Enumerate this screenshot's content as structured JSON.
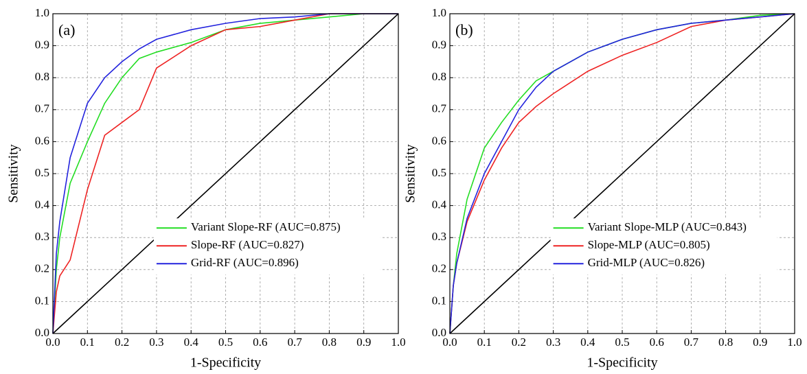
{
  "chart_data": [
    {
      "type": "line",
      "annotation": "(a)",
      "xlabel": "1-Specificity",
      "ylabel": "Sensitivity",
      "x": [
        0,
        0.01,
        0.02,
        0.05,
        0.1,
        0.15,
        0.2,
        0.25,
        0.3,
        0.4,
        0.5,
        0.6,
        0.7,
        0.8,
        0.9,
        1
      ],
      "series": [
        {
          "name": "Variant Slope-RF (AUC=0.875)",
          "color": "#22dd22",
          "values": [
            0,
            0.2,
            0.3,
            0.47,
            0.6,
            0.72,
            0.8,
            0.86,
            0.88,
            0.91,
            0.95,
            0.97,
            0.98,
            0.99,
            1,
            1
          ]
        },
        {
          "name": "Slope-RF (AUC=0.827)",
          "color": "#ee2222",
          "values": [
            0,
            0.13,
            0.18,
            0.23,
            0.45,
            0.62,
            0.66,
            0.7,
            0.83,
            0.9,
            0.95,
            0.96,
            0.98,
            1,
            1,
            1
          ]
        },
        {
          "name": "Grid-RF (AUC=0.896)",
          "color": "#2222dd",
          "values": [
            0,
            0.25,
            0.35,
            0.55,
            0.72,
            0.8,
            0.85,
            0.89,
            0.92,
            0.95,
            0.97,
            0.985,
            0.99,
            1,
            1,
            1
          ]
        }
      ],
      "xlim": [
        0,
        1
      ],
      "ylim": [
        0,
        1
      ],
      "xticks": [
        {
          "value": 0,
          "label": "0.0"
        },
        0.1,
        0.2,
        0.3,
        0.4,
        0.5,
        0.6,
        0.7,
        0.8,
        0.9,
        {
          "value": 1,
          "label": "1.0"
        }
      ],
      "yticks": [
        {
          "value": 0,
          "label": "0.0"
        },
        0.1,
        0.2,
        0.3,
        0.4,
        0.5,
        0.6,
        0.7,
        0.8,
        0.9,
        {
          "value": 1,
          "label": "1.0"
        }
      ],
      "grid": true,
      "legend": "lower-right"
    },
    {
      "type": "line",
      "annotation": "(b)",
      "xlabel": "1-Specificity",
      "ylabel": "Sensitivity",
      "x": [
        0,
        0.01,
        0.02,
        0.05,
        0.1,
        0.15,
        0.2,
        0.25,
        0.3,
        0.4,
        0.5,
        0.6,
        0.7,
        0.8,
        0.9,
        1
      ],
      "series": [
        {
          "name": "Variant Slope-MLP (AUC=0.843)",
          "color": "#22dd22",
          "values": [
            0,
            0.15,
            0.25,
            0.42,
            0.58,
            0.66,
            0.73,
            0.79,
            0.82,
            0.88,
            0.92,
            0.95,
            0.97,
            0.98,
            0.995,
            1
          ]
        },
        {
          "name": "Slope-MLP (AUC=0.805)",
          "color": "#ee2222",
          "values": [
            0,
            0.15,
            0.22,
            0.35,
            0.48,
            0.58,
            0.66,
            0.71,
            0.75,
            0.82,
            0.87,
            0.91,
            0.96,
            0.98,
            0.99,
            1
          ]
        },
        {
          "name": "Grid-MLP (AUC=0.826)",
          "color": "#2222dd",
          "values": [
            0,
            0.15,
            0.22,
            0.36,
            0.5,
            0.6,
            0.7,
            0.77,
            0.82,
            0.88,
            0.92,
            0.95,
            0.97,
            0.98,
            0.99,
            1
          ]
        }
      ],
      "xlim": [
        0,
        1
      ],
      "ylim": [
        0,
        1
      ],
      "xticks": [
        {
          "value": 0,
          "label": "0.0"
        },
        0.1,
        0.2,
        0.3,
        0.4,
        0.5,
        0.6,
        0.7,
        0.8,
        0.9,
        {
          "value": 1,
          "label": "1.0"
        }
      ],
      "yticks": [
        {
          "value": 0,
          "label": "0.0"
        },
        0.1,
        0.2,
        0.3,
        0.4,
        0.5,
        0.6,
        0.7,
        0.8,
        0.9,
        {
          "value": 1,
          "label": "1.0"
        }
      ],
      "grid": true,
      "legend": "lower-right"
    }
  ]
}
